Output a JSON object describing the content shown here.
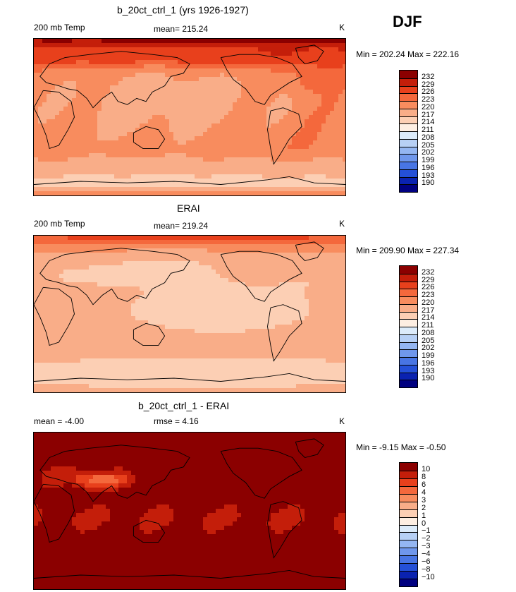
{
  "season": "DJF",
  "chart_data": [
    {
      "type": "heatmap",
      "title": "b_20ct_ctrl_1 (yrs 1926-1927)",
      "left_label": "200 mb Temp",
      "center_label": "mean= 215.24",
      "units": "K",
      "minmax": "Min = 202.24 Max = 222.16",
      "stats": {
        "mean": 215.24,
        "min": 202.24,
        "max": 222.16
      },
      "levels": [
        "232",
        "229",
        "226",
        "223",
        "220",
        "217",
        "214",
        "211",
        "208",
        "205",
        "202",
        "199",
        "196",
        "193",
        "190"
      ],
      "palette": [
        "#8b0000",
        "#c41e0a",
        "#e8401c",
        "#f4683c",
        "#f88c5e",
        "#f9ad88",
        "#fccfb4",
        "#fdeee2",
        "#dcebfa",
        "#b7d0f5",
        "#94b6f2",
        "#6f97ec",
        "#4875e4",
        "#2450d8",
        "#0a22b0",
        "#000080"
      ],
      "pattern": "model"
    },
    {
      "type": "heatmap",
      "title": "ERAI",
      "left_label": "200 mb Temp",
      "center_label": "mean= 219.24",
      "units": "K",
      "minmax": "Min = 209.90 Max = 227.34",
      "stats": {
        "mean": 219.24,
        "min": 209.9,
        "max": 227.34
      },
      "levels": [
        "232",
        "229",
        "226",
        "223",
        "220",
        "217",
        "214",
        "211",
        "208",
        "205",
        "202",
        "199",
        "196",
        "193",
        "190"
      ],
      "palette": [
        "#8b0000",
        "#c41e0a",
        "#e8401c",
        "#f4683c",
        "#f88c5e",
        "#f9ad88",
        "#fccfb4",
        "#fdeee2",
        "#dcebfa",
        "#b7d0f5",
        "#94b6f2",
        "#6f97ec",
        "#4875e4",
        "#2450d8",
        "#0a22b0",
        "#000080"
      ],
      "pattern": "obs"
    },
    {
      "type": "heatmap",
      "title": "b_20ct_ctrl_1 - ERAI",
      "left_label": "mean =   -4.00",
      "center_label": "rmse =    4.16",
      "units": "K",
      "minmax": "Min =  -9.15 Max =  -0.50",
      "stats": {
        "mean": -4.0,
        "rmse": 4.16,
        "min": -9.15,
        "max": -0.5
      },
      "levels": [
        "10",
        "8",
        "6",
        "4",
        "3",
        "2",
        "1",
        "0",
        "−1",
        "−2",
        "−3",
        "−4",
        "−6",
        "−8",
        "−10"
      ],
      "palette": [
        "#8b0000",
        "#c41e0a",
        "#e8401c",
        "#f4683c",
        "#f88c5e",
        "#f9ad88",
        "#fccfb4",
        "#fdeee2",
        "#dcebfa",
        "#b7d0f5",
        "#94b6f2",
        "#6f97ec",
        "#4875e4",
        "#2450d8",
        "#0a22b0",
        "#000080"
      ],
      "pattern": "diff"
    }
  ]
}
